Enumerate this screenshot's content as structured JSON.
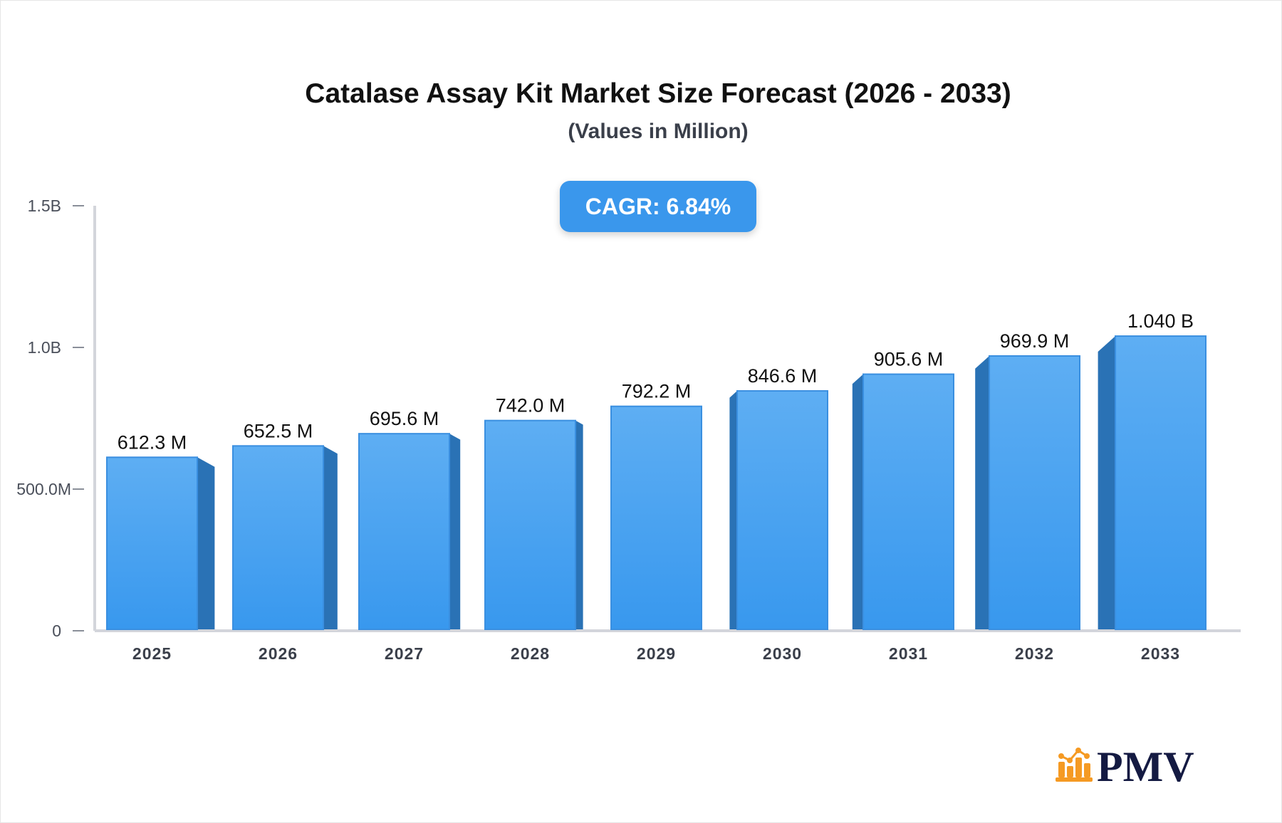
{
  "chart_data": {
    "type": "bar",
    "title": "Catalase Assay Kit Market Size Forecast (2026 - 2033)",
    "subtitle": "(Values in Million)",
    "annotation": "CAGR: 6.84%",
    "categories": [
      "2025",
      "2026",
      "2027",
      "2028",
      "2029",
      "2030",
      "2031",
      "2032",
      "2033"
    ],
    "values": [
      612.3,
      652.5,
      695.6,
      742.0,
      792.2,
      846.6,
      905.6,
      969.9,
      1040
    ],
    "data_labels": [
      "612.3 M",
      "652.5 M",
      "695.6 M",
      "742.0 M",
      "792.2 M",
      "846.6 M",
      "905.6 M",
      "969.9 M",
      "1.040 B"
    ],
    "unit": "Million",
    "ylim": [
      0,
      1500
    ],
    "yticks": [
      0,
      500,
      1000,
      1500
    ],
    "ytick_labels": [
      "0",
      "500.0M",
      "1.0B",
      "1.5B"
    ],
    "grid": false,
    "colors": {
      "bar_top": "#5eaef3",
      "bar_bottom": "#3898ee",
      "bar_side": "#2a72b5",
      "axis": "#d3d5db",
      "cagr_badge": "#3a97ec"
    }
  },
  "logo": {
    "text": "PMV",
    "icon": "bar-chart-trend-icon",
    "colors": {
      "icon": "#f59a23",
      "text": "#141a42"
    }
  }
}
